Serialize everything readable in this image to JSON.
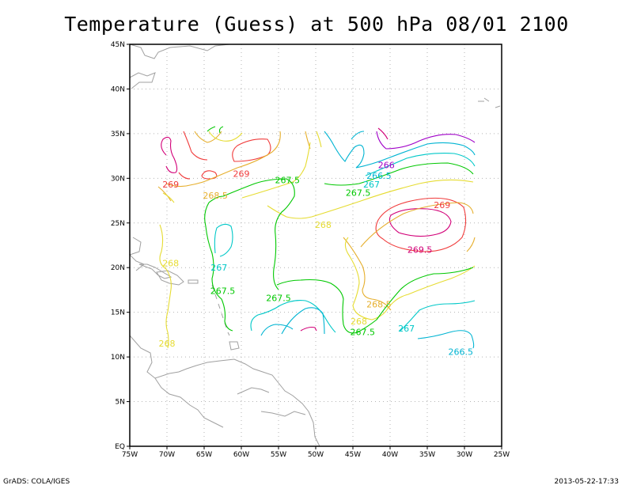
{
  "title": "Temperature (Guess) at 500 hPa 08/01 2100",
  "footer": {
    "left": "GrADS: COLA/IGES",
    "right": "2013-05-22-17:33"
  },
  "axes": {
    "lon_labels": [
      "75W",
      "70W",
      "65W",
      "60W",
      "55W",
      "50W",
      "45W",
      "40W",
      "35W",
      "30W",
      "25W"
    ],
    "lat_labels": [
      "EQ",
      "5N",
      "10N",
      "15N",
      "20N",
      "25N",
      "30N",
      "35N",
      "40N",
      "45N"
    ]
  },
  "colors": {
    "266": "#a000c8",
    "266.5": "#00b4d2",
    "267": "#00c8c8",
    "267.5": "#00c800",
    "268": "#e6dc32",
    "268.5": "#e6af2d",
    "269": "#f03c3c",
    "269.5": "#d20078",
    "coast": "#a0a0a0"
  },
  "contour_labels": [
    {
      "text": "269",
      "lon": -69.5,
      "lat": 29.3,
      "level": "269"
    },
    {
      "text": "269",
      "lon": -60.0,
      "lat": 30.5,
      "level": "269"
    },
    {
      "text": "268.5",
      "lon": -63.5,
      "lat": 28.1,
      "level": "268.5"
    },
    {
      "text": "267.5",
      "lon": -53.8,
      "lat": 29.8,
      "level": "267.5"
    },
    {
      "text": "266",
      "lon": -40.5,
      "lat": 31.5,
      "level": "266"
    },
    {
      "text": "266.5",
      "lon": -41.5,
      "lat": 30.3,
      "level": "266.5"
    },
    {
      "text": "267",
      "lon": -42.5,
      "lat": 29.3,
      "level": "267"
    },
    {
      "text": "267.5",
      "lon": -44.3,
      "lat": 28.4,
      "level": "267.5"
    },
    {
      "text": "269",
      "lon": -33.0,
      "lat": 27.0,
      "level": "269"
    },
    {
      "text": "268",
      "lon": -49.0,
      "lat": 24.8,
      "level": "268"
    },
    {
      "text": "269.5",
      "lon": -36.0,
      "lat": 22.0,
      "level": "269.5"
    },
    {
      "text": "268",
      "lon": -69.5,
      "lat": 20.5,
      "level": "268"
    },
    {
      "text": "267",
      "lon": -63.0,
      "lat": 20.0,
      "level": "267"
    },
    {
      "text": "267.5",
      "lon": -62.5,
      "lat": 17.4,
      "level": "267.5"
    },
    {
      "text": "267.5",
      "lon": -55.0,
      "lat": 16.6,
      "level": "267.5"
    },
    {
      "text": "268.5",
      "lon": -41.5,
      "lat": 15.9,
      "level": "268.5"
    },
    {
      "text": "268",
      "lon": -44.2,
      "lat": 14.0,
      "level": "268"
    },
    {
      "text": "267.5",
      "lon": -43.7,
      "lat": 12.8,
      "level": "267.5"
    },
    {
      "text": "267",
      "lon": -37.8,
      "lat": 13.2,
      "level": "267"
    },
    {
      "text": "266.5",
      "lon": -30.5,
      "lat": 10.6,
      "level": "266.5"
    },
    {
      "text": "268",
      "lon": -70.0,
      "lat": 11.5,
      "level": "268"
    }
  ]
}
